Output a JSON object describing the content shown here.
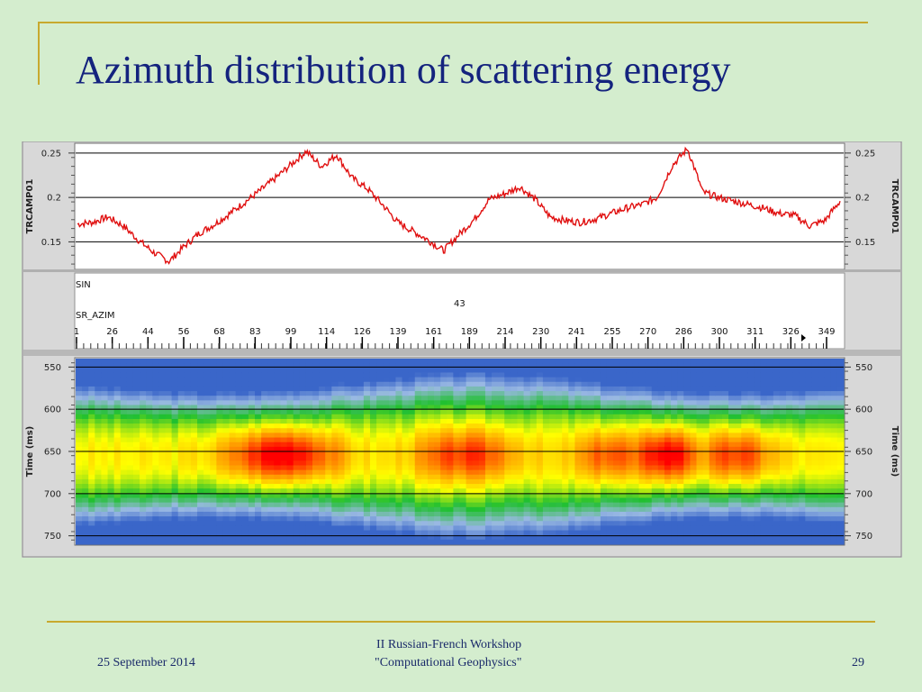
{
  "slide": {
    "title": "Azimuth distribution of scattering energy",
    "date": "25 September 2014",
    "workshop_line1": "II Russian-French Workshop",
    "workshop_line2": "\"Computational Geophysics\"",
    "page_number": "29"
  },
  "colors": {
    "background": "#d4edce",
    "title": "#14237e",
    "rule": "#c8a92e",
    "trace": "#e01010"
  },
  "chart_data": [
    {
      "type": "line",
      "ylabel": "TRCAMP01",
      "y_ticks": [
        0.25,
        0.2,
        0.15
      ],
      "y_tick_labels": [
        "0.25",
        "0.2",
        "0.15"
      ],
      "ylim": [
        0.12,
        0.26
      ],
      "grid": true,
      "series": [
        {
          "x": [
            0,
            2,
            4,
            6,
            8,
            10,
            12,
            14,
            16,
            18,
            20,
            22,
            24,
            26,
            28,
            30,
            32,
            34,
            36,
            38,
            40,
            42,
            44,
            46,
            48,
            50,
            52,
            54,
            56,
            58,
            60,
            62,
            64,
            66,
            68,
            70,
            72,
            74,
            76,
            78,
            80,
            82,
            84,
            86,
            88,
            90,
            92,
            94,
            96,
            98,
            100
          ],
          "y": [
            0.17,
            0.172,
            0.178,
            0.168,
            0.152,
            0.138,
            0.128,
            0.145,
            0.16,
            0.17,
            0.182,
            0.195,
            0.208,
            0.222,
            0.237,
            0.252,
            0.235,
            0.248,
            0.222,
            0.21,
            0.192,
            0.172,
            0.162,
            0.152,
            0.14,
            0.158,
            0.175,
            0.198,
            0.204,
            0.212,
            0.198,
            0.178,
            0.174,
            0.172,
            0.176,
            0.182,
            0.188,
            0.192,
            0.2,
            0.236,
            0.255,
            0.206,
            0.2,
            0.196,
            0.192,
            0.188,
            0.182,
            0.18,
            0.168,
            0.174,
            0.196
          ]
        }
      ]
    },
    {
      "type": "heatmap",
      "ylabel": "Time (ms)",
      "y_ticks": [
        550,
        600,
        650,
        700,
        750
      ],
      "y_tick_labels": [
        "550",
        "600",
        "650",
        "700",
        "750"
      ],
      "ylim": [
        540,
        760
      ],
      "grid": true,
      "x_header": {
        "row1": "SIN",
        "row2": "43",
        "row3": "SR_AZIM"
      },
      "x_tick_labels": [
        "1",
        "26",
        "44",
        "56",
        "68",
        "83",
        "99",
        "114",
        "126",
        "139",
        "161",
        "189",
        "214",
        "230",
        "241",
        "255",
        "270",
        "286",
        "300",
        "311",
        "326",
        "349"
      ],
      "colormap": [
        "#3a66c9",
        "#9ab9e3",
        "#20c030",
        "#ffff00",
        "#ff8c00",
        "#ff0000"
      ]
    }
  ]
}
